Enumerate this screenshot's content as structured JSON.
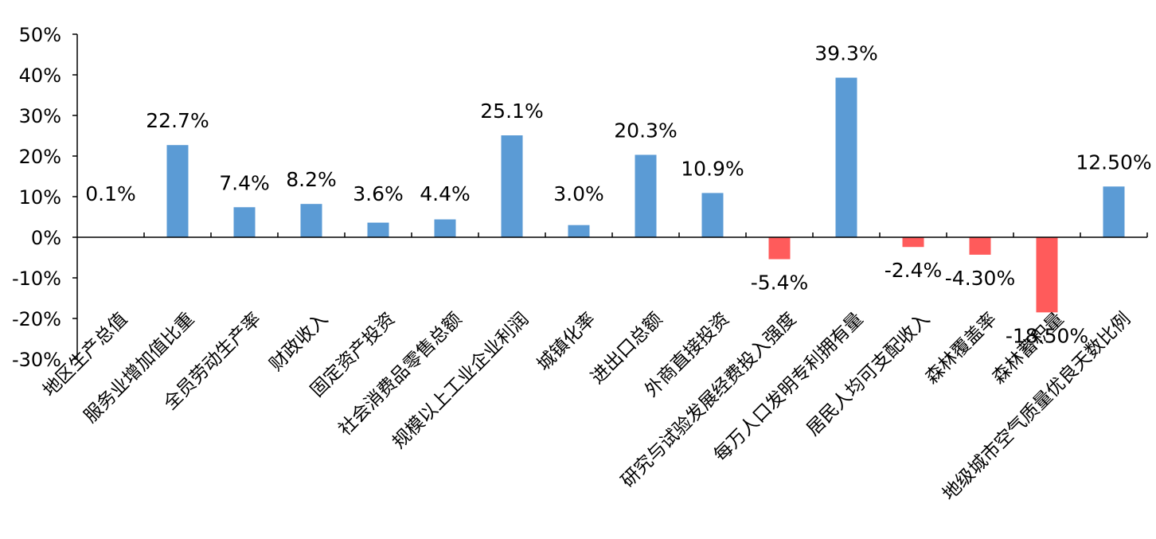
{
  "chart_data": {
    "type": "bar",
    "title": "",
    "xlabel": "",
    "ylabel": "",
    "ylim": [
      -30,
      50
    ],
    "ytick_step": 10,
    "ytick_labels": [
      "50%",
      "40%",
      "30%",
      "20%",
      "10%",
      "0%",
      "-10%",
      "-20%",
      "-30%"
    ],
    "grid": false,
    "legend": "none",
    "colors": {
      "positive": "#5B9BD5",
      "negative": "#FF5B5B"
    },
    "categories": [
      "地区生产总值",
      "服务业增加值比重",
      "全员劳动生产率",
      "财政收入",
      "固定资产投资",
      "社会消费品零售总额",
      "规模以上工业企业利润",
      "城镇化率",
      "进出口总额",
      "外商直接投资",
      "研究与试验发展经费投入强度",
      "每万人口发明专利拥有量",
      "居民人均可支配收入",
      "森林覆盖率",
      "森林蓄积量",
      "地级城市空气质量优良天数比例"
    ],
    "values": [
      0.1,
      22.7,
      7.4,
      8.2,
      3.6,
      4.4,
      25.1,
      3.0,
      20.3,
      10.9,
      -5.4,
      39.3,
      -2.4,
      -4.3,
      -18.5,
      12.5
    ],
    "data_labels": [
      "0.1%",
      "22.7%",
      "7.4%",
      "8.2%",
      "3.6%",
      "4.4%",
      "25.1%",
      "3.0%",
      "20.3%",
      "10.9%",
      "-5.4%",
      "39.3%",
      "-2.4%",
      "-4.30%",
      "-18.50%",
      "12.50%"
    ]
  }
}
